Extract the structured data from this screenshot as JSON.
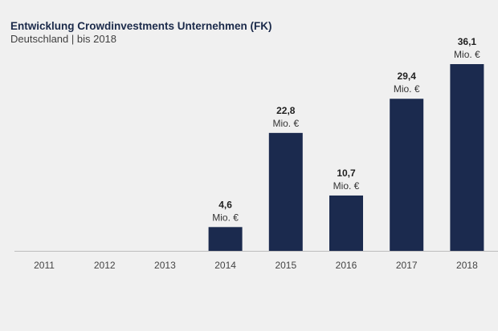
{
  "colors": {
    "bar": "#1b2a4e",
    "background": "#f0f0f0",
    "axis": "#bdbdbd"
  },
  "chart_data": {
    "type": "bar",
    "title": "Entwicklung Crowdinvestments Unternehmen (FK)",
    "subtitle": "Deutschland | bis 2018",
    "categories": [
      "2011",
      "2012",
      "2013",
      "2014",
      "2015",
      "2016",
      "2017",
      "2018"
    ],
    "values": [
      0,
      0,
      0,
      4.6,
      22.8,
      10.7,
      29.4,
      36.1
    ],
    "value_labels": [
      "",
      "",
      "",
      "4,6",
      "22,8",
      "10,7",
      "29,4",
      "36,1"
    ],
    "unit_label": "Mio. €",
    "xlabel": "",
    "ylabel": "",
    "ylim": [
      0,
      36.1
    ],
    "grid": false,
    "legend": "none"
  }
}
